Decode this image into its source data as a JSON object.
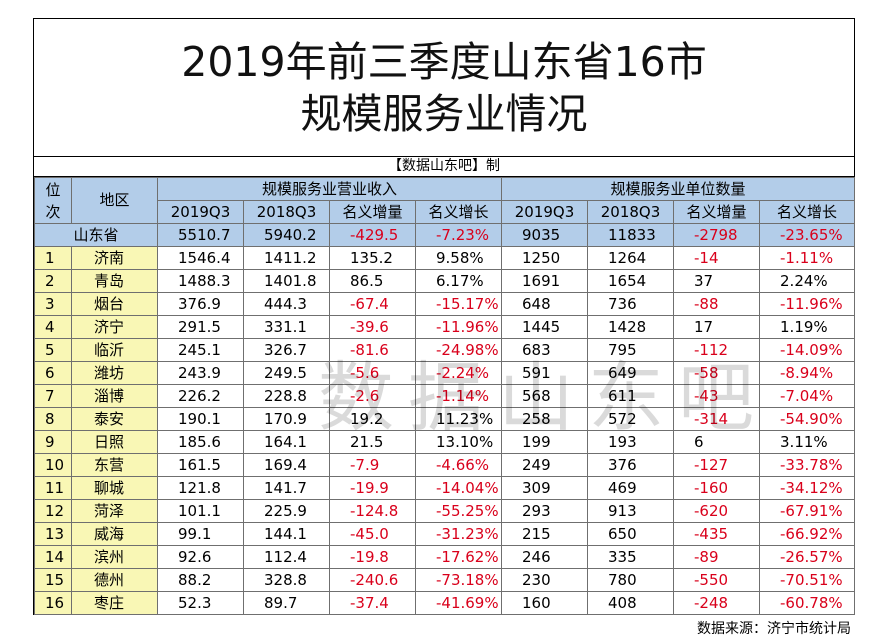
{
  "title_line1": "2019年前三季度山东省16市",
  "title_line2": "规模服务业情况",
  "credit": "【数据山东吧】制",
  "headers": {
    "rank": "位次",
    "region": "地区",
    "group_revenue": "规模服务业营业收入",
    "group_units": "规模服务业单位数量",
    "sub": [
      "2019Q3",
      "2018Q3",
      "名义增量",
      "名义增长",
      "2019Q3",
      "2018Q3",
      "名义增量",
      "名义增长"
    ]
  },
  "province": {
    "name": "山东省",
    "values": [
      "5510.7",
      "5940.2",
      "-429.5",
      "-7.23%",
      "9035",
      "11833",
      "-2798",
      "-23.65%"
    ]
  },
  "rows": [
    {
      "rank": "1",
      "city": "济南",
      "values": [
        "1546.4",
        "1411.2",
        "135.2",
        "9.58%",
        "1250",
        "1264",
        "-14",
        "-1.11%"
      ]
    },
    {
      "rank": "2",
      "city": "青岛",
      "values": [
        "1488.3",
        "1401.8",
        "86.5",
        "6.17%",
        "1691",
        "1654",
        "37",
        "2.24%"
      ]
    },
    {
      "rank": "3",
      "city": "烟台",
      "values": [
        "376.9",
        "444.3",
        "-67.4",
        "-15.17%",
        "648",
        "736",
        "-88",
        "-11.96%"
      ]
    },
    {
      "rank": "4",
      "city": "济宁",
      "values": [
        "291.5",
        "331.1",
        "-39.6",
        "-11.96%",
        "1445",
        "1428",
        "17",
        "1.19%"
      ]
    },
    {
      "rank": "5",
      "city": "临沂",
      "values": [
        "245.1",
        "326.7",
        "-81.6",
        "-24.98%",
        "683",
        "795",
        "-112",
        "-14.09%"
      ]
    },
    {
      "rank": "6",
      "city": "潍坊",
      "values": [
        "243.9",
        "249.5",
        "-5.6",
        "-2.24%",
        "591",
        "649",
        "-58",
        "-8.94%"
      ]
    },
    {
      "rank": "7",
      "city": "淄博",
      "values": [
        "226.2",
        "228.8",
        "-2.6",
        "-1.14%",
        "568",
        "611",
        "-43",
        "-7.04%"
      ]
    },
    {
      "rank": "8",
      "city": "泰安",
      "values": [
        "190.1",
        "170.9",
        "19.2",
        "11.23%",
        "258",
        "572",
        "-314",
        "-54.90%"
      ]
    },
    {
      "rank": "9",
      "city": "日照",
      "values": [
        "185.6",
        "164.1",
        "21.5",
        "13.10%",
        "199",
        "193",
        "6",
        "3.11%"
      ]
    },
    {
      "rank": "10",
      "city": "东营",
      "values": [
        "161.5",
        "169.4",
        "-7.9",
        "-4.66%",
        "249",
        "376",
        "-127",
        "-33.78%"
      ]
    },
    {
      "rank": "11",
      "city": "聊城",
      "values": [
        "121.8",
        "141.7",
        "-19.9",
        "-14.04%",
        "309",
        "469",
        "-160",
        "-34.12%"
      ]
    },
    {
      "rank": "12",
      "city": "菏泽",
      "values": [
        "101.1",
        "225.9",
        "-124.8",
        "-55.25%",
        "293",
        "913",
        "-620",
        "-67.91%"
      ]
    },
    {
      "rank": "13",
      "city": "威海",
      "values": [
        "99.1",
        "144.1",
        "-45.0",
        "-31.23%",
        "215",
        "650",
        "-435",
        "-66.92%"
      ]
    },
    {
      "rank": "14",
      "city": "滨州",
      "values": [
        "92.6",
        "112.4",
        "-19.8",
        "-17.62%",
        "246",
        "335",
        "-89",
        "-26.57%"
      ]
    },
    {
      "rank": "15",
      "city": "德州",
      "values": [
        "88.2",
        "328.8",
        "-240.6",
        "-73.18%",
        "230",
        "780",
        "-550",
        "-70.51%"
      ]
    },
    {
      "rank": "16",
      "city": "枣庄",
      "values": [
        "52.3",
        "89.7",
        "-37.4",
        "-41.69%",
        "160",
        "408",
        "-248",
        "-60.78%"
      ]
    }
  ],
  "watermark": "数据山东吧",
  "source": "数据来源：济宁市统计局",
  "colors": {
    "header_bg": "#b3cde9",
    "highlight_bg": "#f9f7b5",
    "negative": "#d9001b"
  }
}
